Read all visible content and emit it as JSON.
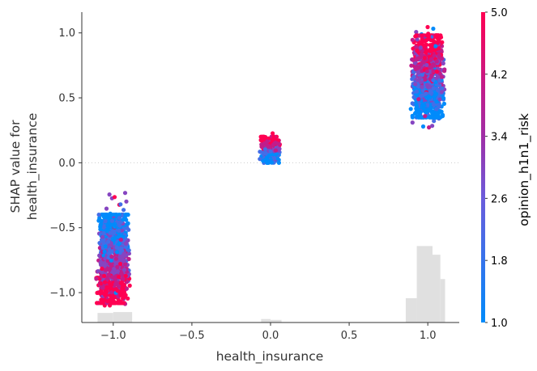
{
  "chart_data": {
    "type": "scatter",
    "title": "",
    "xlabel": "health_insurance",
    "ylabel_lines": [
      "SHAP value for",
      "health_insurance"
    ],
    "xlim": [
      -1.2,
      1.2
    ],
    "ylim": [
      -1.23,
      1.16
    ],
    "x_ticks": [
      -1.0,
      -0.5,
      0.0,
      0.5,
      1.0
    ],
    "x_tick_labels": [
      "−1.0",
      "−0.5",
      "0.0",
      "0.5",
      "1.0"
    ],
    "y_ticks": [
      1.0,
      0.5,
      0.0,
      -0.5,
      -1.0
    ],
    "y_tick_labels": [
      "1.0",
      "0.5",
      "0.0",
      "−0.5",
      "−1.0"
    ],
    "grid": false,
    "zero_line": true,
    "color_feature": "opinion_h1n1_risk",
    "colorbar": {
      "label": "opinion_h1n1_risk",
      "min": 1.0,
      "max": 5.0,
      "ticks": [
        5.0,
        4.2,
        3.4,
        2.6,
        1.8,
        1.0
      ],
      "tick_labels": [
        "5.0",
        "4.2",
        "3.4",
        "2.6",
        "1.8",
        "1.0"
      ],
      "colors": [
        "#008bfb",
        "#6b5cdc",
        "#a02ea6",
        "#c11d8b",
        "#ff0052"
      ]
    },
    "clusters": [
      {
        "x": -1.0,
        "jitter": 0.11,
        "y_min": -1.12,
        "y_max": -0.22,
        "y_core": [
          -1.08,
          -0.4
        ],
        "count": 900,
        "high_risk_low_shap": true
      },
      {
        "x": 0.0,
        "jitter": 0.07,
        "y_min": -0.11,
        "y_max": 0.25,
        "y_core": [
          0.0,
          0.2
        ],
        "count": 220,
        "high_risk_low_shap": false
      },
      {
        "x": 1.0,
        "jitter": 0.11,
        "y_min": 0.27,
        "y_max": 1.05,
        "y_core": [
          0.35,
          0.98
        ],
        "count": 900,
        "high_risk_low_shap": false
      }
    ],
    "histogram": {
      "note": "feature distribution shown as grey bars along the bottom",
      "bins": [
        {
          "x0": -1.1,
          "x1": -1.0,
          "rel_height": 0.11
        },
        {
          "x0": -1.0,
          "x1": -0.88,
          "rel_height": 0.12
        },
        {
          "x0": -0.06,
          "x1": 0.0,
          "rel_height": 0.04
        },
        {
          "x0": 0.0,
          "x1": 0.07,
          "rel_height": 0.03
        },
        {
          "x0": 0.86,
          "x1": 0.93,
          "rel_height": 0.28
        },
        {
          "x0": 0.93,
          "x1": 1.03,
          "rel_height": 0.88
        },
        {
          "x0": 1.03,
          "x1": 1.08,
          "rel_height": 0.78
        },
        {
          "x0": 1.08,
          "x1": 1.11,
          "rel_height": 0.5
        }
      ]
    }
  }
}
